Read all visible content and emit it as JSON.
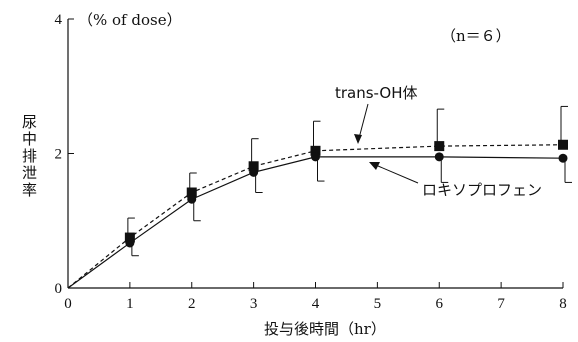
{
  "chart_data": {
    "type": "line",
    "title": "",
    "xlabel": "投与後時間（hr）",
    "ylabel": "尿中排泄率",
    "yunit": "（% of dose）",
    "note": "（n＝６）",
    "xlim": [
      0,
      8
    ],
    "ylim": [
      0,
      4
    ],
    "xticks": [
      "0",
      "1",
      "2",
      "3",
      "4",
      "5",
      "6",
      "7",
      "8"
    ],
    "yticks": [
      "0",
      "2",
      "4"
    ],
    "series": [
      {
        "name": "trans-OH体",
        "marker": "square",
        "line": "dashed",
        "x": [
          1,
          2,
          3,
          4,
          6,
          8
        ],
        "y": [
          0.75,
          1.42,
          1.81,
          2.04,
          2.11,
          2.13
        ],
        "err": [
          0.29,
          0.29,
          0.41,
          0.44,
          0.55,
          0.57
        ]
      },
      {
        "name": "ロキソプロフェン",
        "marker": "circle",
        "line": "solid",
        "x": [
          1,
          2,
          3,
          4,
          6,
          8
        ],
        "y": [
          0.67,
          1.32,
          1.72,
          1.95,
          1.95,
          1.93
        ],
        "err": [
          0.19,
          0.32,
          0.3,
          0.36,
          0.38,
          0.36
        ]
      }
    ]
  }
}
